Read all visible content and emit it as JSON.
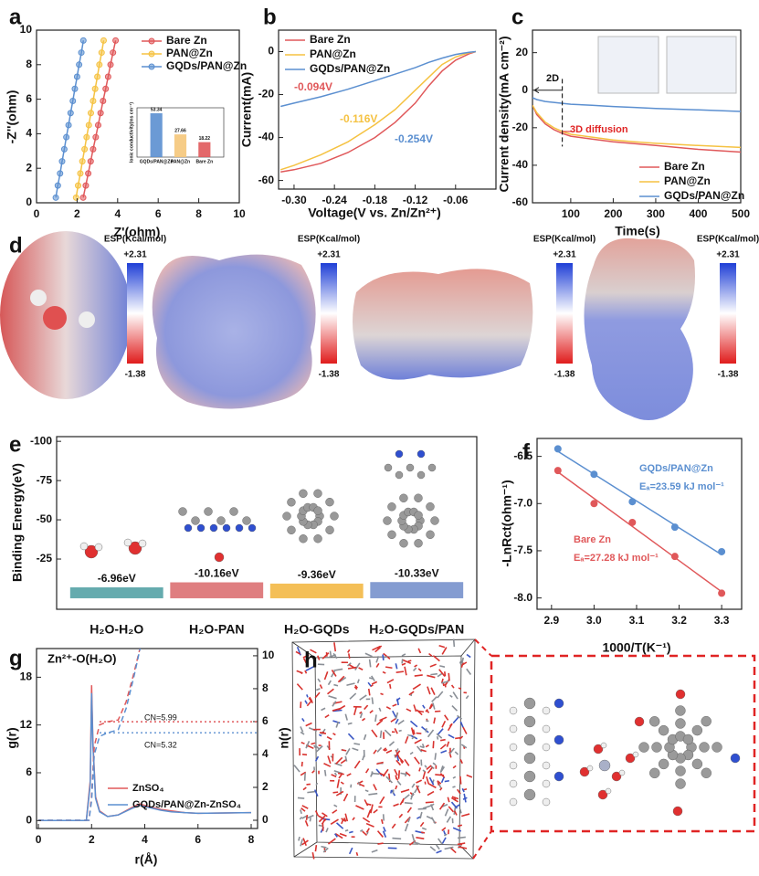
{
  "chart_data": [
    {
      "panel": "a",
      "type": "line",
      "xlabel": "Z'(ohm)",
      "ylabel": "-Z''(ohm)",
      "xlim": [
        0,
        10
      ],
      "ylim": [
        0,
        10
      ],
      "xticks": [
        0,
        2,
        4,
        6,
        8,
        10
      ],
      "yticks": [
        0,
        2,
        4,
        6,
        8,
        10
      ],
      "markers": true,
      "legend": "upper right",
      "series": [
        {
          "name": "Bare Zn",
          "color": "#e0585a",
          "x": [
            2.3,
            2.43,
            2.55,
            2.67,
            2.79,
            2.92,
            3.04,
            3.16,
            3.28,
            3.41,
            3.53,
            3.65,
            3.77,
            3.9
          ],
          "values": [
            0.3,
            1.0,
            1.7,
            2.4,
            3.1,
            3.8,
            4.5,
            5.2,
            5.9,
            6.6,
            7.3,
            8.0,
            8.7,
            9.4
          ]
        },
        {
          "name": "PAN@Zn",
          "color": "#f5c242",
          "x": [
            1.95,
            2.05,
            2.16,
            2.26,
            2.37,
            2.47,
            2.58,
            2.68,
            2.79,
            2.89,
            3.0,
            3.1,
            3.21,
            3.31
          ],
          "values": [
            0.3,
            1.0,
            1.7,
            2.4,
            3.1,
            3.8,
            4.5,
            5.2,
            5.9,
            6.6,
            7.3,
            8.0,
            8.7,
            9.4
          ]
        },
        {
          "name": "GQDs/PAN@Zn",
          "color": "#5b8fd0",
          "x": [
            0.95,
            1.05,
            1.16,
            1.26,
            1.37,
            1.47,
            1.58,
            1.68,
            1.79,
            1.89,
            2.0,
            2.1,
            2.21,
            2.31
          ],
          "values": [
            0.3,
            1.0,
            1.7,
            2.4,
            3.1,
            3.8,
            4.5,
            5.2,
            5.9,
            6.6,
            7.3,
            8.0,
            8.7,
            9.4
          ]
        }
      ]
    },
    {
      "type": "bar",
      "ylabel": "Ionic conductivity(ms cm⁻¹)",
      "categories": [
        "GQDs/PAN@Zn",
        "PAN@Zn",
        "Bare Zn"
      ],
      "values": [
        53.34,
        27.66,
        18.22
      ],
      "colors": [
        "#5b8fd0",
        "#f5c77a",
        "#e0585a"
      ],
      "ylim": [
        0,
        60
      ]
    },
    {
      "panel": "b",
      "type": "line",
      "xlabel": "Voltage(V vs. Zn/Zn²⁺)",
      "ylabel": "Current(mA)",
      "xlim": [
        -0.323,
        0
      ],
      "ylim": [
        -64,
        10
      ],
      "xticks": [
        {
          "value": -0.3,
          "label": "-0.30"
        },
        -0.24,
        -0.18,
        -0.12,
        -0.06
      ],
      "yticks": [
        0,
        -20,
        -40,
        -60
      ],
      "legend": "upper left",
      "series": [
        {
          "name": "Bare Zn",
          "color": "#e0585a",
          "annotation": "-0.094V",
          "x": [
            -0.32,
            -0.3,
            -0.26,
            -0.22,
            -0.18,
            -0.15,
            -0.12,
            -0.1,
            -0.08,
            -0.06,
            -0.04,
            -0.03
          ],
          "values": [
            -56,
            -55,
            -52,
            -47,
            -40,
            -33,
            -24,
            -16,
            -9,
            -4,
            -1,
            0
          ]
        },
        {
          "name": "PAN@Zn",
          "color": "#f5c242",
          "annotation": "-0.116V",
          "x": [
            -0.32,
            -0.3,
            -0.26,
            -0.22,
            -0.18,
            -0.15,
            -0.12,
            -0.1,
            -0.08,
            -0.06,
            -0.04,
            -0.03
          ],
          "values": [
            -55,
            -53,
            -48,
            -42,
            -34,
            -27,
            -18,
            -12,
            -6,
            -2.5,
            -0.5,
            0
          ]
        },
        {
          "name": "GQDs/PAN@Zn",
          "color": "#5b8fd0",
          "annotation": "-0.254V",
          "x": [
            -0.32,
            -0.3,
            -0.26,
            -0.22,
            -0.18,
            -0.15,
            -0.12,
            -0.1,
            -0.08,
            -0.06,
            -0.04,
            -0.03
          ],
          "values": [
            -25.5,
            -24,
            -21,
            -17.5,
            -13.5,
            -10.5,
            -7.5,
            -5,
            -3,
            -1.3,
            -0.3,
            0
          ]
        }
      ]
    },
    {
      "panel": "c",
      "type": "line",
      "xlabel": "Time(s)",
      "ylabel": "Current density(mA cm⁻²)",
      "xlim": [
        10,
        500
      ],
      "ylim": [
        -60,
        32
      ],
      "xticks": [
        100,
        200,
        300,
        400,
        500
      ],
      "yticks": [
        20,
        0,
        -20,
        -40,
        -60
      ],
      "legend": "lower right",
      "annotations": [
        "2D",
        "3D diffusion"
      ],
      "boundary": 80,
      "series": [
        {
          "name": "Bare Zn",
          "color": "#e0585a",
          "x": [
            10,
            20,
            40,
            60,
            80,
            100,
            150,
            200,
            250,
            300,
            400,
            500
          ],
          "values": [
            -8,
            -13,
            -18,
            -21,
            -23,
            -24.5,
            -26,
            -27.5,
            -28.5,
            -29.5,
            -31.5,
            -33
          ]
        },
        {
          "name": "PAN@Zn",
          "color": "#f5c242",
          "x": [
            10,
            20,
            40,
            60,
            80,
            100,
            150,
            200,
            250,
            300,
            400,
            500
          ],
          "values": [
            -8,
            -12,
            -17,
            -20,
            -22,
            -23.5,
            -25,
            -26.5,
            -27.5,
            -28.3,
            -29.5,
            -30.5
          ]
        },
        {
          "name": "GQDs/PAN@Zn",
          "color": "#5b8fd0",
          "x": [
            10,
            20,
            40,
            60,
            80,
            100,
            150,
            200,
            250,
            300,
            400,
            500
          ],
          "values": [
            -4,
            -5,
            -6,
            -6.5,
            -7,
            -7.5,
            -8,
            -8.7,
            -9.2,
            -9.7,
            -10.5,
            -11.3
          ]
        }
      ]
    },
    {
      "panel": "e",
      "type": "bar",
      "ylabel": "Binding Energy(eV)",
      "categories": [
        "H₂O-H₂O",
        "H₂O-PAN",
        "H₂O-GQDs",
        "H₂O-GQDs/PAN"
      ],
      "values": [
        -6.96,
        -10.16,
        -9.36,
        -10.33
      ],
      "value_labels": [
        "-6.96eV",
        "-10.16eV",
        "-9.36eV",
        "-10.33eV"
      ],
      "colors": [
        "#4a9ca0",
        "#d9676a",
        "#f2b43a",
        "#6f8bc9"
      ],
      "ylim": [
        7,
        -103
      ],
      "yticks": [
        -100,
        -75,
        -50,
        -25
      ]
    },
    {
      "panel": "f",
      "type": "scatter",
      "xlabel": "1000/T(K⁻¹)",
      "ylabel": "-LnRct(ohm⁻¹)",
      "xlim": [
        2.866,
        3.347
      ],
      "ylim": [
        -8.12,
        -6.31
      ],
      "xticks": [
        2.9,
        {
          "value": 3,
          "label": "3.0"
        },
        3.1,
        3.2,
        3.3
      ],
      "yticks": [
        -6.5,
        {
          "value": -7,
          "label": "-7.0"
        },
        -7.5,
        {
          "value": -8,
          "label": "-8.0"
        }
      ],
      "fit": true,
      "series": [
        {
          "name": "GQDs/PAN@Zn",
          "annotation": "Eₐ=23.59 kJ mol⁻¹",
          "color": "#5b8fd0",
          "x": [
            2.915,
            3.0,
            3.09,
            3.19,
            3.3
          ],
          "values": [
            -6.42,
            -6.69,
            -6.98,
            -7.25,
            -7.51
          ]
        },
        {
          "name": "Bare Zn",
          "annotation": "Eₐ=27.28 kJ mol⁻¹",
          "color": "#e0585a",
          "x": [
            2.915,
            3.0,
            3.09,
            3.19,
            3.3
          ],
          "values": [
            -6.65,
            -7.0,
            -7.2,
            -7.56,
            -7.95
          ]
        }
      ]
    },
    {
      "panel": "g",
      "type": "line",
      "title": "Zn²⁺-O(H₂O)",
      "xlabel": "r(Å)",
      "ylabel": "g(r)",
      "y2label": "n(r)",
      "xlim": [
        -0.07,
        8.24
      ],
      "ylim": [
        -1,
        21.6
      ],
      "y2lim": [
        -0.5,
        10.44
      ],
      "xticks": [
        0,
        2,
        4,
        6,
        8
      ],
      "yticks": [
        0,
        6,
        12,
        18
      ],
      "y2ticks": [
        0,
        2,
        4,
        6,
        8,
        10
      ],
      "legend": "center",
      "cn_lines": [
        {
          "value": 5.99,
          "label": "CN=5.99",
          "color": "#e0585a"
        },
        {
          "value": 5.32,
          "label": "CN=5.32",
          "color": "#5b8fd0"
        }
      ],
      "series": [
        {
          "name": "ZnSO₄",
          "color": "#e0585a",
          "x": [
            0,
            1.8,
            1.95,
            2.0,
            2.05,
            2.15,
            2.3,
            2.6,
            3.0,
            3.5,
            3.8,
            4.2,
            4.6,
            5,
            5.5,
            6,
            7,
            8
          ],
          "values": [
            0,
            0,
            5,
            17,
            10,
            3,
            1.2,
            0.5,
            0.7,
            1.6,
            2.1,
            1.7,
            1.4,
            1.2,
            1.0,
            0.9,
            0.95,
            1.0
          ]
        },
        {
          "name": "GQDs/PAN@Zn-ZnSO₄",
          "color": "#5b8fd0",
          "x": [
            0,
            1.8,
            1.95,
            2.0,
            2.05,
            2.15,
            2.3,
            2.6,
            3.0,
            3.5,
            3.8,
            4.2,
            4.6,
            5,
            5.5,
            6,
            7,
            8
          ],
          "values": [
            0,
            0,
            4.5,
            16,
            9.5,
            2.8,
            1.1,
            0.5,
            0.7,
            1.5,
            1.9,
            1.6,
            1.3,
            1.1,
            1.0,
            0.9,
            0.95,
            1.0
          ]
        },
        {
          "color": "#e0585a",
          "axis": "y2",
          "style": "dashed",
          "x": [
            0,
            1.9,
            2.0,
            2.1,
            2.3,
            2.6,
            3.0,
            3.3,
            3.6,
            3.9
          ],
          "values": [
            0,
            0,
            1.5,
            4.5,
            5.8,
            5.99,
            6.1,
            7.2,
            9.0,
            11
          ]
        },
        {
          "color": "#5b8fd0",
          "axis": "y2",
          "style": "dashed",
          "x": [
            0,
            1.9,
            2.0,
            2.1,
            2.3,
            2.6,
            3.0,
            3.3,
            3.6,
            3.9
          ],
          "values": [
            0,
            0,
            1.2,
            4.0,
            5.1,
            5.32,
            5.5,
            6.8,
            8.8,
            11
          ]
        }
      ]
    }
  ],
  "esp": {
    "panel": "d",
    "scales": [
      {
        "title": "ESP(Kcal/mol)",
        "max": "+2.31",
        "min": "-1.38"
      },
      {
        "title": "ESP(Kcal/mol)",
        "max": "+2.31",
        "min": "-1.38"
      },
      {
        "title": "ESP(Kcal/mol)",
        "max": "+2.31",
        "min": "-1.38"
      },
      {
        "title": "ESP(Kcal/mol)",
        "max": "+2.31",
        "min": "-1.38"
      }
    ]
  },
  "md": {
    "panel": "h"
  }
}
